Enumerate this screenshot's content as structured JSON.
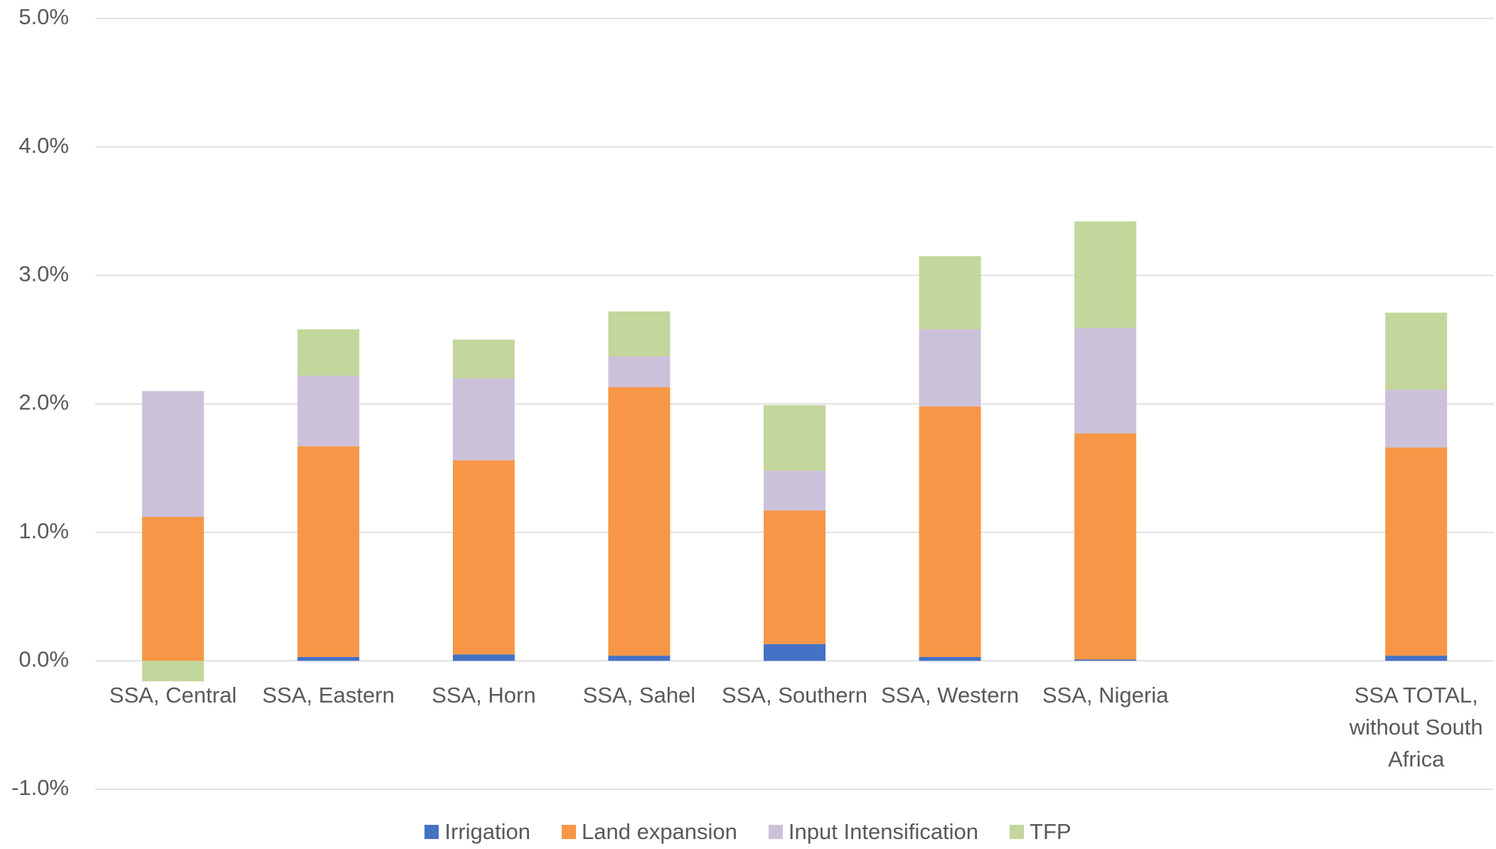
{
  "chart_data": {
    "type": "bar",
    "stacked": true,
    "categories": [
      "SSA, Central",
      "SSA, Eastern",
      "SSA, Horn",
      "SSA, Sahel",
      "SSA, Southern",
      "SSA, Western",
      "SSA, Nigeria",
      null,
      "SSA TOTAL, without South Africa"
    ],
    "series": [
      {
        "name": "Irrigation",
        "color": "#4472c4",
        "values": [
          0,
          0.03,
          0.05,
          0.04,
          0.13,
          0.03,
          0.01,
          null,
          0.04
        ]
      },
      {
        "name": "Land expansion",
        "color": "#f79646",
        "values": [
          1.12,
          1.64,
          1.51,
          2.09,
          1.04,
          1.95,
          1.76,
          null,
          1.62
        ]
      },
      {
        "name": "Input Intensification",
        "color": "#ccc1da",
        "values": [
          0.98,
          0.55,
          0.64,
          0.24,
          0.31,
          0.6,
          0.82,
          null,
          0.45
        ]
      },
      {
        "name": "TFP",
        "color": "#c3d69b",
        "values": [
          -0.16,
          0.36,
          0.3,
          0.35,
          0.51,
          0.57,
          0.83,
          null,
          0.6
        ]
      }
    ],
    "ylim": [
      -1,
      5
    ],
    "yticks": [
      {
        "value": -1,
        "label": "-1.0%"
      },
      {
        "value": 0,
        "label": "0.0%"
      },
      {
        "value": 1,
        "label": "1.0%"
      },
      {
        "value": 2,
        "label": "2.0%"
      },
      {
        "value": 3,
        "label": "3.0%"
      },
      {
        "value": 4,
        "label": "4.0%"
      },
      {
        "value": 5,
        "label": "5.0%"
      }
    ],
    "grid": true,
    "legend": "bottom"
  }
}
